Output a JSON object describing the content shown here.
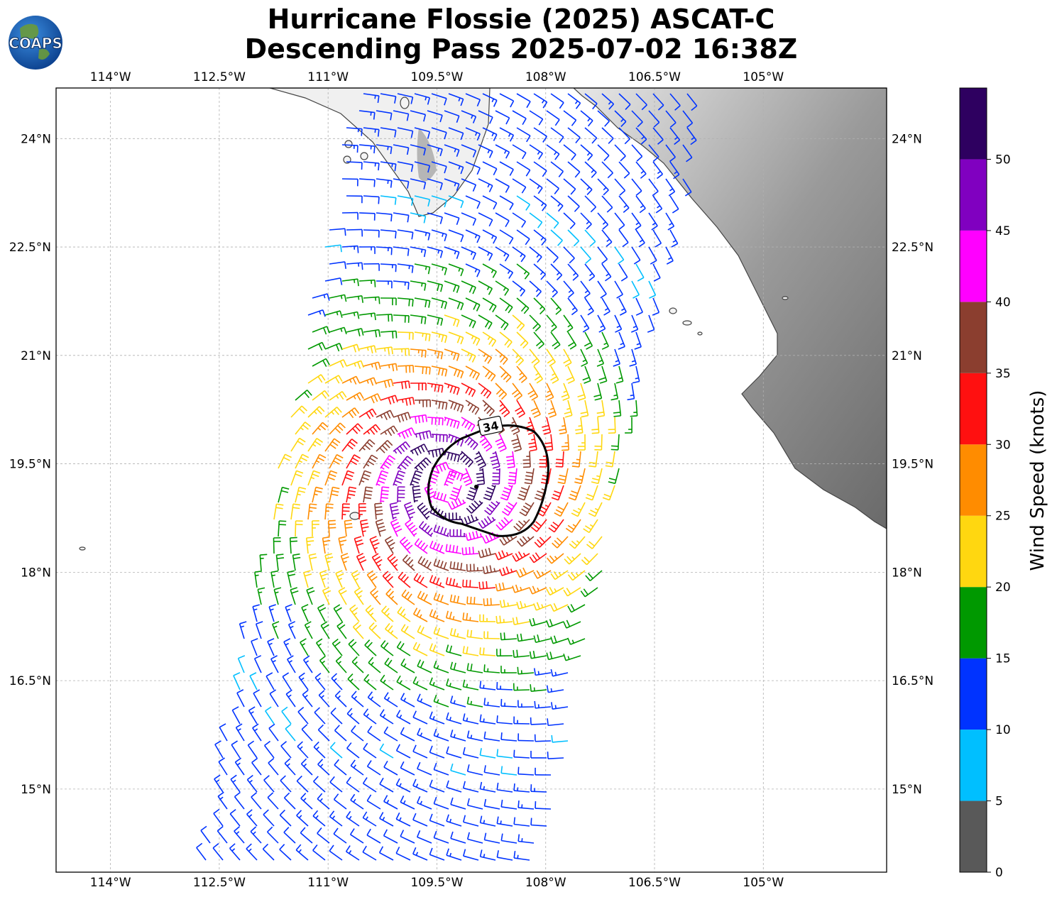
{
  "title": {
    "line1": "Hurricane Flossie (2025) ASCAT-C",
    "line2": "Descending Pass 2025-07-02 16:38Z"
  },
  "logo": {
    "text": "COAPS"
  },
  "map": {
    "lon_range": [
      -114.75,
      -103.3
    ],
    "lat_range": [
      13.85,
      24.7
    ],
    "lon_ticks": [
      {
        "value": -114,
        "label": "114°W"
      },
      {
        "value": -112.5,
        "label": "112.5°W"
      },
      {
        "value": -111,
        "label": "111°W"
      },
      {
        "value": -109.5,
        "label": "109.5°W"
      },
      {
        "value": -108,
        "label": "108°W"
      },
      {
        "value": -106.5,
        "label": "106.5°W"
      },
      {
        "value": -105,
        "label": "105°W"
      }
    ],
    "lat_ticks": [
      {
        "value": 24,
        "label": "24°N"
      },
      {
        "value": 22.5,
        "label": "22.5°N"
      },
      {
        "value": 21,
        "label": "21°N"
      },
      {
        "value": 19.5,
        "label": "19.5°N"
      },
      {
        "value": 18,
        "label": "18°N"
      },
      {
        "value": 16.5,
        "label": "16.5°N"
      },
      {
        "value": 15,
        "label": "15°N"
      }
    ],
    "gridlines": true,
    "storm_center": {
      "lon": -109.35,
      "lat": 19.2
    },
    "contour_label": "34",
    "contour_value_knots": 34
  },
  "colorbar": {
    "label": "Wind Speed (knots)",
    "ticks": [
      "0",
      "5",
      "10",
      "15",
      "20",
      "25",
      "30",
      "35",
      "40",
      "45",
      "50"
    ],
    "bins": [
      {
        "from": 0,
        "to": 5,
        "color": "#595959"
      },
      {
        "from": 5,
        "to": 10,
        "color": "#00bfff"
      },
      {
        "from": 10,
        "to": 15,
        "color": "#0033ff"
      },
      {
        "from": 15,
        "to": 20,
        "color": "#009900"
      },
      {
        "from": 20,
        "to": 25,
        "color": "#ffd710"
      },
      {
        "from": 25,
        "to": 30,
        "color": "#ff8c00"
      },
      {
        "from": 30,
        "to": 35,
        "color": "#ff1010"
      },
      {
        "from": 35,
        "to": 40,
        "color": "#8b3e2f"
      },
      {
        "from": 40,
        "to": 45,
        "color": "#ff00ff"
      },
      {
        "from": 45,
        "to": 50,
        "color": "#8000c0"
      },
      {
        "from": 50,
        "to": 55,
        "color": "#2e0060"
      }
    ]
  }
}
